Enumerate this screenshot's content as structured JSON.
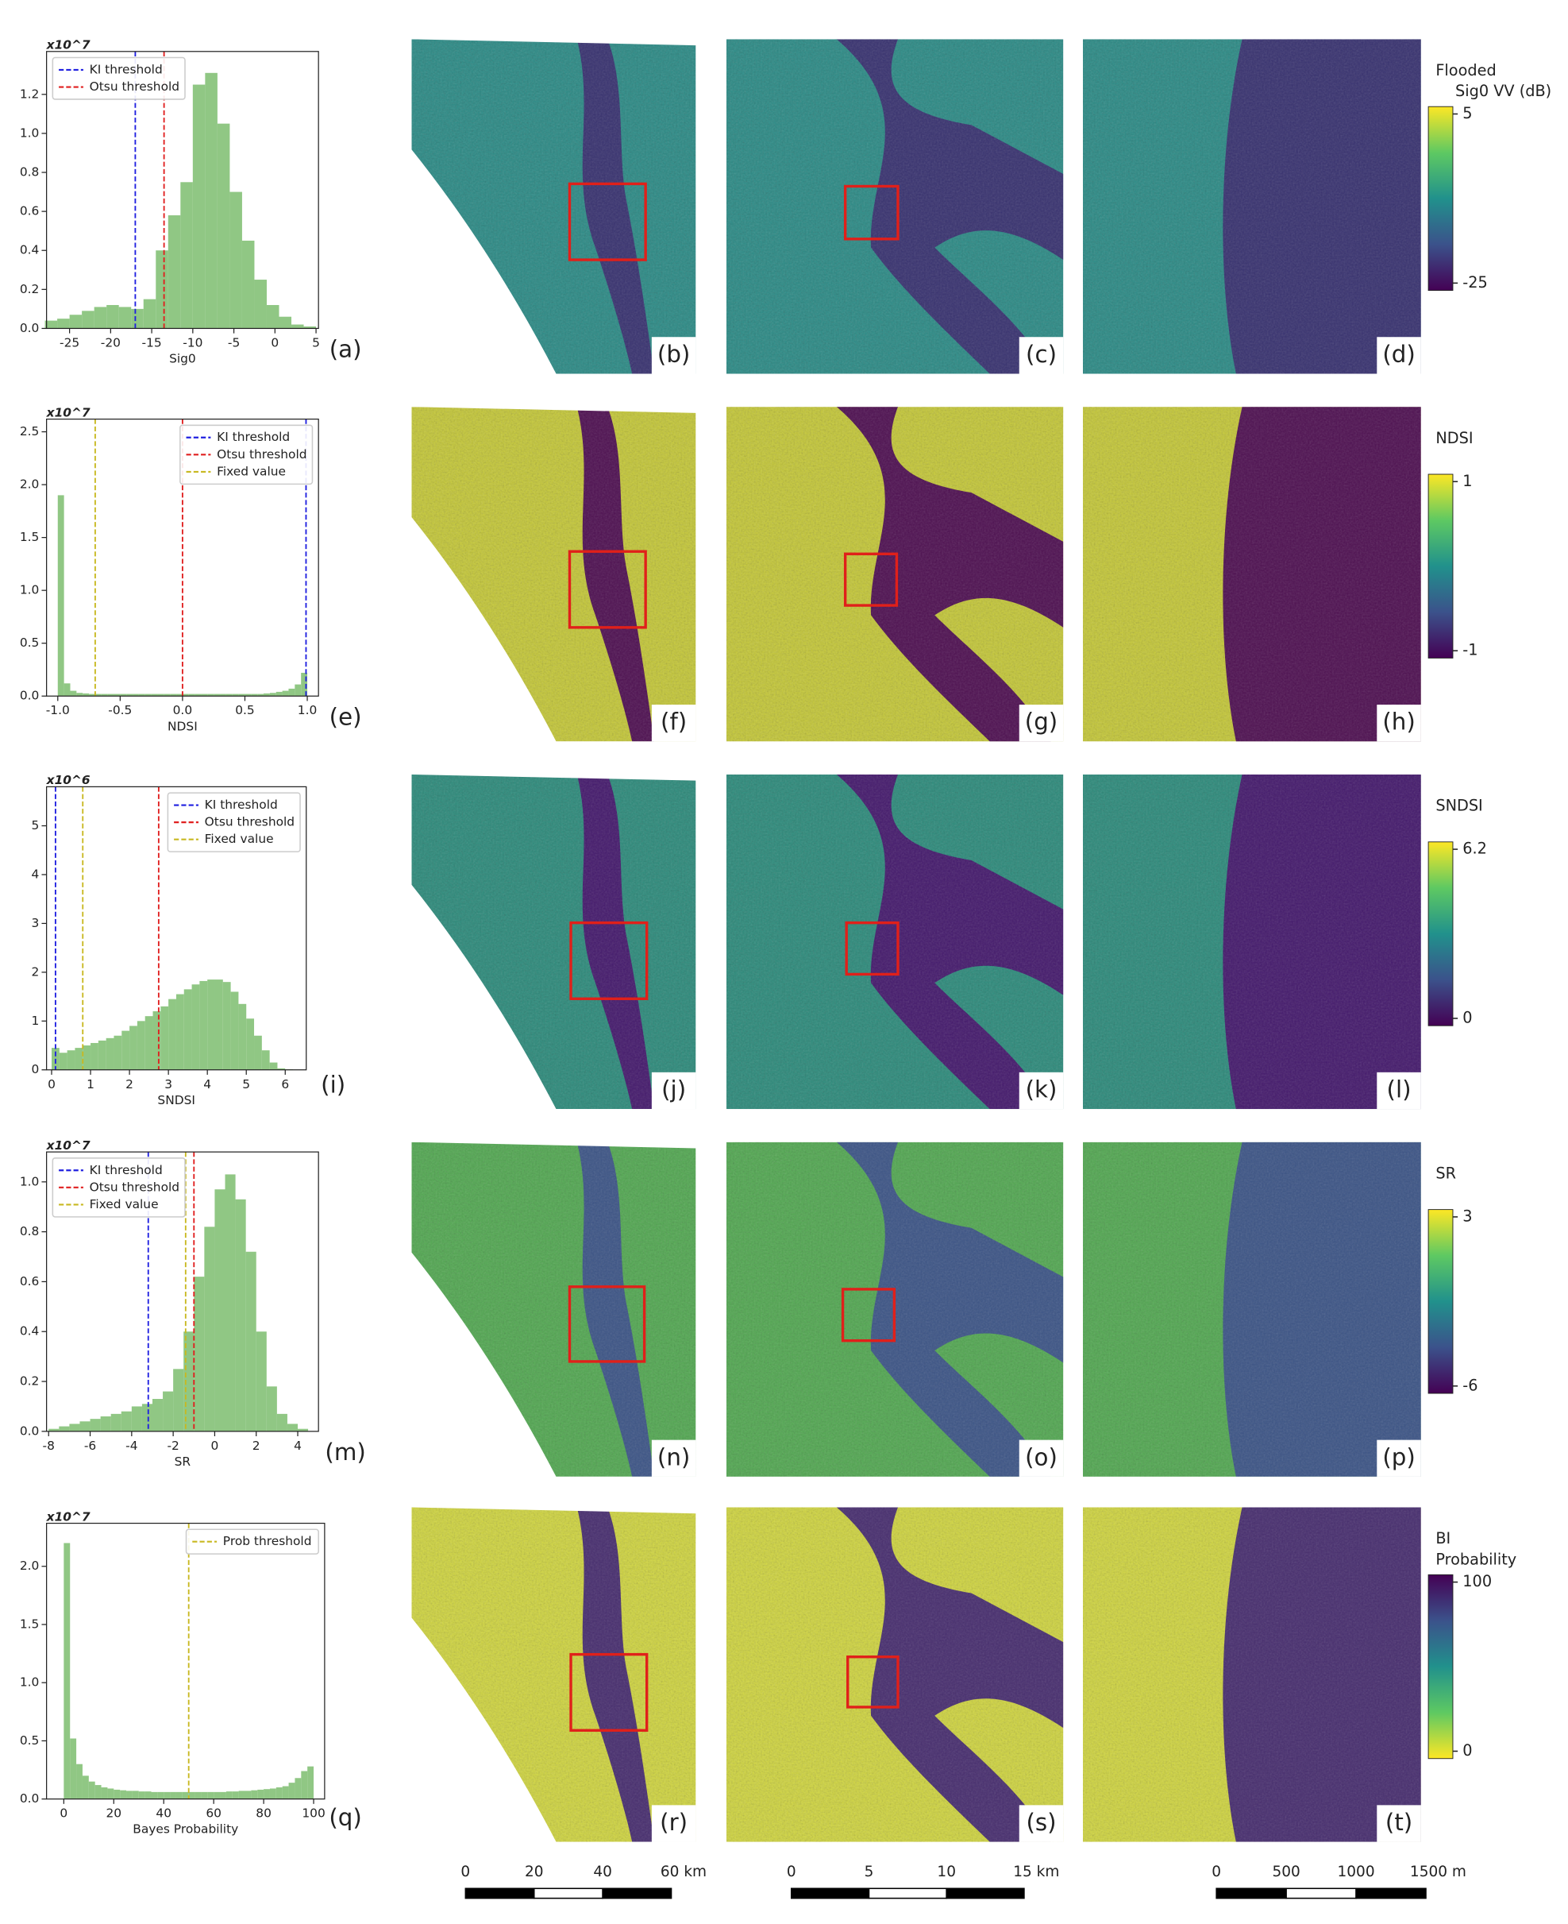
{
  "chart_data": [
    {
      "type": "histogram",
      "y_offset_label": "x10^7",
      "xlabel": "Sig0",
      "color": "#7cbd6e",
      "legend": "upper left",
      "bins": [
        -28,
        -26.5,
        -25,
        -23.5,
        -22,
        -20.5,
        -19,
        -17.5,
        -16,
        -14.5,
        -13,
        -11.5,
        -10,
        -8.5,
        -7,
        -5.5,
        -4,
        -2.5,
        -1,
        0.5,
        2,
        3.5,
        5
      ],
      "counts": [
        0.04,
        0.05,
        0.07,
        0.09,
        0.11,
        0.12,
        0.11,
        0.1,
        0.15,
        0.4,
        0.58,
        0.75,
        1.25,
        1.31,
        1.05,
        0.7,
        0.45,
        0.25,
        0.12,
        0.06,
        0.02,
        0.01
      ],
      "thresholds": [
        {
          "name": "KI threshold",
          "value": -17,
          "color": "#1f1fe0"
        },
        {
          "name": "Otsu threshold",
          "value": -13.5,
          "color": "#e01f1f"
        }
      ],
      "xlim": [
        -27.8,
        5.3
      ],
      "ylim": [
        0,
        1.42
      ],
      "xticks": [
        -25,
        -20,
        -15,
        -10,
        -5,
        0,
        5
      ],
      "yticks": [
        {
          "value": 0,
          "label": "0.0"
        },
        {
          "value": 0.2,
          "label": "0.2"
        },
        {
          "value": 0.4,
          "label": "0.4"
        },
        {
          "value": 0.6,
          "label": "0.6"
        },
        {
          "value": 0.8,
          "label": "0.8"
        },
        {
          "value": 1.0,
          "label": "1.0"
        },
        {
          "value": 1.2,
          "label": "1.2"
        }
      ]
    },
    {
      "type": "histogram",
      "y_offset_label": "x10^7",
      "xlabel": "NDSI",
      "color": "#7cbd6e",
      "legend": "upper right",
      "bins": [
        -1,
        -0.95,
        -0.9,
        -0.85,
        -0.8,
        -0.75,
        -0.7,
        -0.65,
        -0.6,
        -0.55,
        -0.5,
        -0.45,
        -0.4,
        -0.35,
        -0.3,
        -0.25,
        -0.2,
        -0.15,
        -0.1,
        -0.05,
        0,
        0.05,
        0.1,
        0.15,
        0.2,
        0.25,
        0.3,
        0.35,
        0.4,
        0.45,
        0.5,
        0.55,
        0.6,
        0.65,
        0.7,
        0.75,
        0.8,
        0.85,
        0.9,
        0.95,
        1
      ],
      "counts": [
        1.9,
        0.12,
        0.05,
        0.03,
        0.025,
        0.02,
        0.02,
        0.02,
        0.02,
        0.02,
        0.02,
        0.02,
        0.02,
        0.02,
        0.02,
        0.02,
        0.02,
        0.02,
        0.02,
        0.02,
        0.02,
        0.02,
        0.02,
        0.02,
        0.02,
        0.02,
        0.02,
        0.02,
        0.02,
        0.02,
        0.02,
        0.02,
        0.02,
        0.025,
        0.03,
        0.04,
        0.05,
        0.07,
        0.11,
        0.22
      ],
      "thresholds": [
        {
          "name": "KI threshold",
          "value": 0.99,
          "color": "#1f1fe0"
        },
        {
          "name": "Otsu threshold",
          "value": 0.0,
          "color": "#e01f1f"
        },
        {
          "name": "Fixed value",
          "value": -0.7,
          "color": "#c8b820"
        }
      ],
      "xlim": [
        -1.09,
        1.09
      ],
      "ylim": [
        0,
        2.62
      ],
      "xticks": [
        {
          "value": -1,
          "label": "-1.0"
        },
        {
          "value": -0.5,
          "label": "-0.5"
        },
        {
          "value": 0,
          "label": "0.0"
        },
        {
          "value": 0.5,
          "label": "0.5"
        },
        {
          "value": 1,
          "label": "1.0"
        }
      ],
      "yticks": [
        {
          "value": 0,
          "label": "0.0"
        },
        {
          "value": 0.5,
          "label": "0.5"
        },
        {
          "value": 1.0,
          "label": "1.0"
        },
        {
          "value": 1.5,
          "label": "1.5"
        },
        {
          "value": 2.0,
          "label": "2.0"
        },
        {
          "value": 2.5,
          "label": "2.5"
        }
      ]
    },
    {
      "type": "histogram",
      "y_offset_label": "x10^6",
      "xlabel": "SNDSI",
      "color": "#7cbd6e",
      "legend": "upper right",
      "bins": [
        0,
        0.2,
        0.4,
        0.6,
        0.8,
        1.0,
        1.2,
        1.4,
        1.6,
        1.8,
        2.0,
        2.2,
        2.4,
        2.6,
        2.8,
        3.0,
        3.2,
        3.4,
        3.6,
        3.8,
        4.0,
        4.2,
        4.4,
        4.6,
        4.8,
        5.0,
        5.2,
        5.4,
        5.6,
        5.8,
        6.0,
        6.2
      ],
      "counts": [
        0.45,
        0.35,
        0.4,
        0.45,
        0.5,
        0.55,
        0.6,
        0.65,
        0.7,
        0.8,
        0.9,
        1.0,
        1.1,
        1.2,
        1.3,
        1.45,
        1.55,
        1.65,
        1.75,
        1.82,
        1.85,
        1.85,
        1.8,
        1.6,
        1.35,
        1.05,
        0.7,
        0.4,
        0.15,
        0.03,
        0.01
      ],
      "thresholds": [
        {
          "name": "KI threshold",
          "value": 0.1,
          "color": "#1f1fe0"
        },
        {
          "name": "Otsu threshold",
          "value": 2.75,
          "color": "#e01f1f"
        },
        {
          "name": "Fixed value",
          "value": 0.8,
          "color": "#c8b820"
        }
      ],
      "xlim": [
        -0.13,
        6.54
      ],
      "ylim": [
        0,
        5.8
      ],
      "xticks": [
        0,
        1,
        2,
        3,
        4,
        5,
        6
      ],
      "yticks": [
        0,
        1,
        2,
        3,
        4,
        5
      ]
    },
    {
      "type": "histogram",
      "y_offset_label": "x10^7",
      "xlabel": "SR",
      "color": "#7cbd6e",
      "legend": "upper left",
      "bins": [
        -8,
        -7.5,
        -7,
        -6.5,
        -6,
        -5.5,
        -5,
        -4.5,
        -4,
        -3.5,
        -3,
        -2.5,
        -2,
        -1.5,
        -1,
        -0.5,
        0,
        0.5,
        1,
        1.5,
        2,
        2.5,
        3,
        3.5,
        4,
        4.5
      ],
      "counts": [
        0.01,
        0.02,
        0.03,
        0.04,
        0.05,
        0.06,
        0.07,
        0.08,
        0.1,
        0.11,
        0.13,
        0.16,
        0.25,
        0.4,
        0.62,
        0.82,
        0.97,
        1.03,
        0.93,
        0.72,
        0.4,
        0.18,
        0.07,
        0.03,
        0.01
      ],
      "thresholds": [
        {
          "name": "KI threshold",
          "value": -3.2,
          "color": "#1f1fe0"
        },
        {
          "name": "Otsu threshold",
          "value": -1.0,
          "color": "#e01f1f"
        },
        {
          "name": "Fixed value",
          "value": -1.4,
          "color": "#c8b820"
        }
      ],
      "xlim": [
        -8.1,
        5.0
      ],
      "ylim": [
        0,
        1.12
      ],
      "xticks": [
        -8,
        -6,
        -4,
        -2,
        0,
        2,
        4
      ],
      "yticks": [
        {
          "value": 0,
          "label": "0.0"
        },
        {
          "value": 0.2,
          "label": "0.2"
        },
        {
          "value": 0.4,
          "label": "0.4"
        },
        {
          "value": 0.6,
          "label": "0.6"
        },
        {
          "value": 0.8,
          "label": "0.8"
        },
        {
          "value": 1.0,
          "label": "1.0"
        }
      ]
    },
    {
      "type": "histogram",
      "y_offset_label": "x10^7",
      "xlabel": "Bayes Probability",
      "color": "#7cbd6e",
      "legend": "upper right",
      "bins": [
        0,
        2.5,
        5,
        7.5,
        10,
        12.5,
        15,
        17.5,
        20,
        22.5,
        25,
        27.5,
        30,
        32.5,
        35,
        37.5,
        40,
        42.5,
        45,
        47.5,
        50,
        52.5,
        55,
        57.5,
        60,
        62.5,
        65,
        67.5,
        70,
        72.5,
        75,
        77.5,
        80,
        82.5,
        85,
        87.5,
        90,
        92.5,
        95,
        97.5,
        100
      ],
      "counts": [
        2.2,
        0.52,
        0.3,
        0.2,
        0.15,
        0.12,
        0.1,
        0.09,
        0.08,
        0.075,
        0.07,
        0.07,
        0.065,
        0.065,
        0.06,
        0.06,
        0.06,
        0.06,
        0.06,
        0.06,
        0.06,
        0.06,
        0.06,
        0.06,
        0.06,
        0.06,
        0.065,
        0.065,
        0.07,
        0.07,
        0.075,
        0.08,
        0.085,
        0.09,
        0.1,
        0.11,
        0.14,
        0.18,
        0.24,
        0.28
      ],
      "thresholds": [
        {
          "name": "Prob threshold",
          "value": 50,
          "color": "#c8b820"
        }
      ],
      "xlim": [
        -6.9,
        104.4
      ],
      "ylim": [
        0,
        2.37
      ],
      "xticks": [
        0,
        20,
        40,
        60,
        80,
        100
      ],
      "yticks": [
        {
          "value": 0,
          "label": "0.0"
        },
        {
          "value": 0.5,
          "label": "0.5"
        },
        {
          "value": 1.0,
          "label": "1.0"
        },
        {
          "value": 1.5,
          "label": "1.5"
        },
        {
          "value": 2.0,
          "label": "2.0"
        }
      ]
    }
  ],
  "panel_labels": [
    "(a)",
    "(b)",
    "(c)",
    "(d)",
    "(e)",
    "(f)",
    "(g)",
    "(h)",
    "(i)",
    "(j)",
    "(k)",
    "(l)",
    "(m)",
    "(n)",
    "(o)",
    "(p)",
    "(q)",
    "(r)",
    "(s)",
    "(t)"
  ],
  "colorbars": [
    {
      "title": [
        "Flooded",
        "Sig0 VV (dB)"
      ],
      "top": "5",
      "bottom": "-25"
    },
    {
      "title": [
        "NDSI"
      ],
      "top": "1",
      "bottom": "-1"
    },
    {
      "title": [
        "SNDSI"
      ],
      "top": "6.2",
      "bottom": "0"
    },
    {
      "title": [
        "SR"
      ],
      "top": "3",
      "bottom": "-6"
    },
    {
      "title": [
        "BI",
        "Probability"
      ],
      "top": "100",
      "bottom": "0"
    }
  ],
  "scale_bars": [
    {
      "labels": [
        "0",
        "20",
        "40",
        "60 km"
      ]
    },
    {
      "labels": [
        "0",
        "5",
        "10",
        "15 km"
      ]
    },
    {
      "labels": [
        "0",
        "500",
        "1000",
        "1500 m"
      ]
    }
  ]
}
